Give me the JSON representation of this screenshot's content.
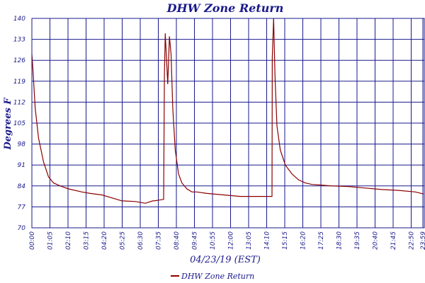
{
  "chart_data": {
    "type": "line",
    "title": "DHW Zone Return",
    "xlabel": "04/23/19 (EST)",
    "ylabel": "Degrees F",
    "ylim": [
      70,
      140
    ],
    "yticks": [
      "70",
      "77",
      "84",
      "91",
      "98",
      "105",
      "112",
      "119",
      "126",
      "133",
      "140"
    ],
    "xticks": [
      "00:00",
      "01:05",
      "02:10",
      "03:15",
      "04:20",
      "05:25",
      "06:30",
      "07:35",
      "08:40",
      "09:45",
      "10:55",
      "12:00",
      "13:05",
      "14:10",
      "15:15",
      "16:20",
      "17:25",
      "18:30",
      "19:35",
      "20:40",
      "21:45",
      "22:50",
      "23:59"
    ],
    "grid": true,
    "legend": "bottom-center",
    "series": [
      {
        "name": "DHW Zone Return",
        "color": "#8b0000",
        "x": [
          0.0,
          0.05,
          0.2,
          0.4,
          0.7,
          1.0,
          1.3,
          1.7,
          2.2,
          3.0,
          3.5,
          4.2,
          4.8,
          5.4,
          6.2,
          6.8,
          7.25,
          7.35,
          7.9,
          7.95,
          8.0,
          8.15,
          8.25,
          8.35,
          8.45,
          8.6,
          8.8,
          9.0,
          9.3,
          9.6,
          9.9,
          10.5,
          11.5,
          12.5,
          13.5,
          14.4,
          14.42,
          14.5,
          14.58,
          14.7,
          14.9,
          15.2,
          15.6,
          16.0,
          16.4,
          16.8,
          17.3,
          18.0,
          19.0,
          20.0,
          21.0,
          22.0,
          23.0,
          23.99
        ],
        "y": [
          128,
          124,
          110,
          100,
          92,
          87,
          85,
          84,
          83,
          82,
          81.5,
          81,
          80,
          79,
          78.8,
          78.2,
          79,
          79,
          79.5,
          121,
          135,
          118,
          134,
          128,
          110,
          96,
          88,
          85,
          83,
          82,
          82,
          81.5,
          81,
          80.5,
          80.5,
          80.5,
          127,
          140,
          121,
          104,
          96,
          91,
          88,
          86,
          85,
          84.5,
          84.3,
          84,
          83.8,
          83.3,
          82.8,
          82.5,
          82,
          81.3
        ]
      }
    ]
  }
}
